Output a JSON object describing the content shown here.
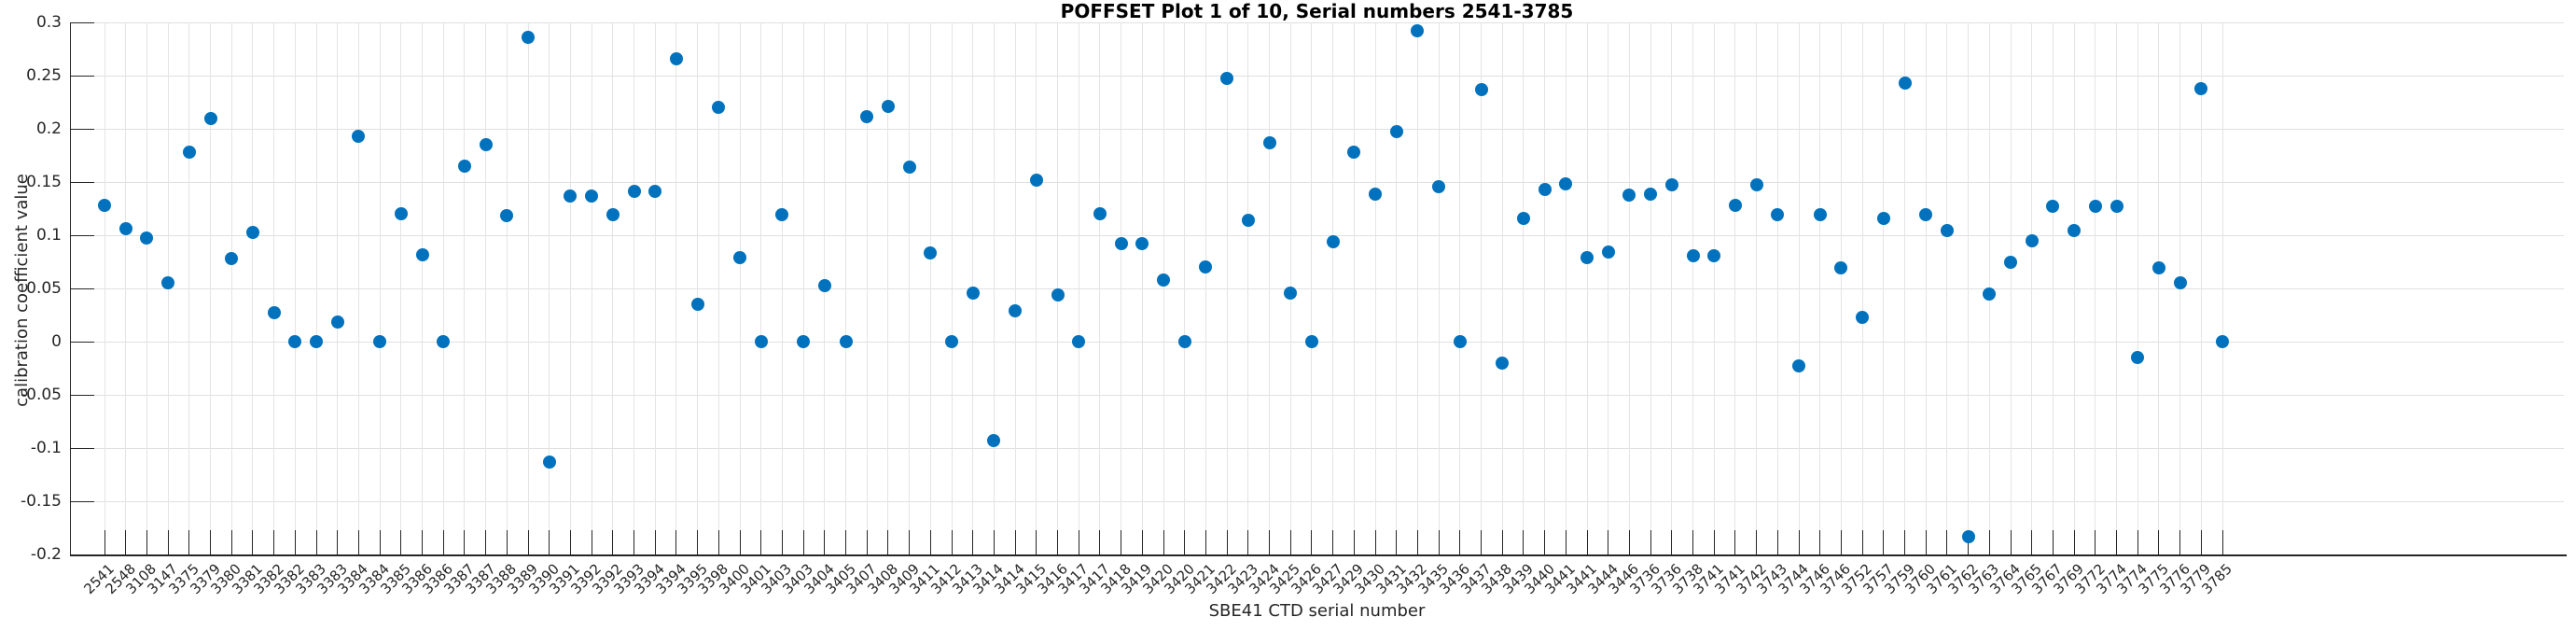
{
  "chart_data": {
    "type": "scatter",
    "title": "POFFSET Plot 1 of 10, Serial numbers 2541-3785",
    "xlabel": "SBE41 CTD serial number",
    "ylabel": "calibration coefficient value",
    "ylim": [
      -0.2,
      0.3
    ],
    "grid": true,
    "legend_position": "none",
    "marker_color": "#0072BD",
    "grid_color": "#e0e0e0",
    "axis_color": "#262626",
    "ytick_values": [
      0.3,
      0.25,
      0.2,
      0.15,
      0.1,
      0.05,
      0,
      -0.05,
      -0.1,
      -0.15,
      -0.2
    ],
    "ytick_labels": [
      "0.3",
      "0.25",
      "0.2",
      "0.15",
      "0.1",
      "0.05",
      "0",
      "-0.05",
      "-0.1",
      "-0.15",
      "-0.2"
    ],
    "categories": [
      "2541",
      "2548",
      "3108",
      "3147",
      "3375",
      "3379",
      "3380",
      "3381",
      "3382",
      "3382",
      "3383",
      "3383",
      "3384",
      "3384",
      "3385",
      "3386",
      "3386",
      "3387",
      "3387",
      "3388",
      "3389",
      "3390",
      "3391",
      "3392",
      "3392",
      "3393",
      "3394",
      "3394",
      "3395",
      "3398",
      "3400",
      "3401",
      "3403",
      "3403",
      "3404",
      "3405",
      "3407",
      "3408",
      "3409",
      "3411",
      "3412",
      "3413",
      "3414",
      "3414",
      "3415",
      "3416",
      "3417",
      "3417",
      "3418",
      "3419",
      "3420",
      "3420",
      "3421",
      "3422",
      "3423",
      "3424",
      "3425",
      "3426",
      "3427",
      "3429",
      "3430",
      "3431",
      "3432",
      "3435",
      "3436",
      "3437",
      "3438",
      "3439",
      "3440",
      "3441",
      "3441",
      "3444",
      "3446",
      "3736",
      "3736",
      "3738",
      "3741",
      "3741",
      "3742",
      "3743",
      "3744",
      "3746",
      "3746",
      "3752",
      "3757",
      "3759",
      "3760",
      "3761",
      "3762",
      "3763",
      "3764",
      "3765",
      "3767",
      "3769",
      "3772",
      "3774",
      "3774",
      "3775",
      "3776",
      "3779",
      "3785"
    ],
    "values": [
      0.128,
      0.106,
      0.097,
      0.055,
      0.178,
      0.21,
      0.078,
      0.103,
      0.027,
      0.0,
      0.0,
      0.018,
      0.193,
      0.0,
      0.12,
      0.082,
      0.0,
      0.165,
      0.185,
      0.118,
      0.286,
      -0.113,
      0.137,
      0.137,
      0.119,
      0.141,
      0.141,
      0.266,
      0.035,
      0.22,
      0.079,
      0.0,
      0.119,
      0.0,
      0.053,
      0.0,
      0.211,
      0.221,
      0.164,
      0.083,
      0.0,
      0.046,
      -0.093,
      0.029,
      0.152,
      0.044,
      0.0,
      0.12,
      0.092,
      0.092,
      0.058,
      0.0,
      0.07,
      0.247,
      0.114,
      0.187,
      0.046,
      0.0,
      0.094,
      0.178,
      0.139,
      0.197,
      0.292,
      0.146,
      0.0,
      0.237,
      -0.02,
      0.116,
      0.143,
      0.148,
      0.079,
      0.084,
      0.138,
      0.139,
      0.147,
      0.081,
      0.081,
      0.128,
      0.147,
      0.119,
      -0.023,
      0.119,
      0.069,
      0.023,
      0.116,
      0.243,
      0.119,
      0.104,
      -0.183,
      0.045,
      0.075,
      0.095,
      0.127,
      0.104,
      0.127,
      0.127,
      -0.015,
      0.069,
      0.055,
      0.238,
      0.0
    ]
  }
}
